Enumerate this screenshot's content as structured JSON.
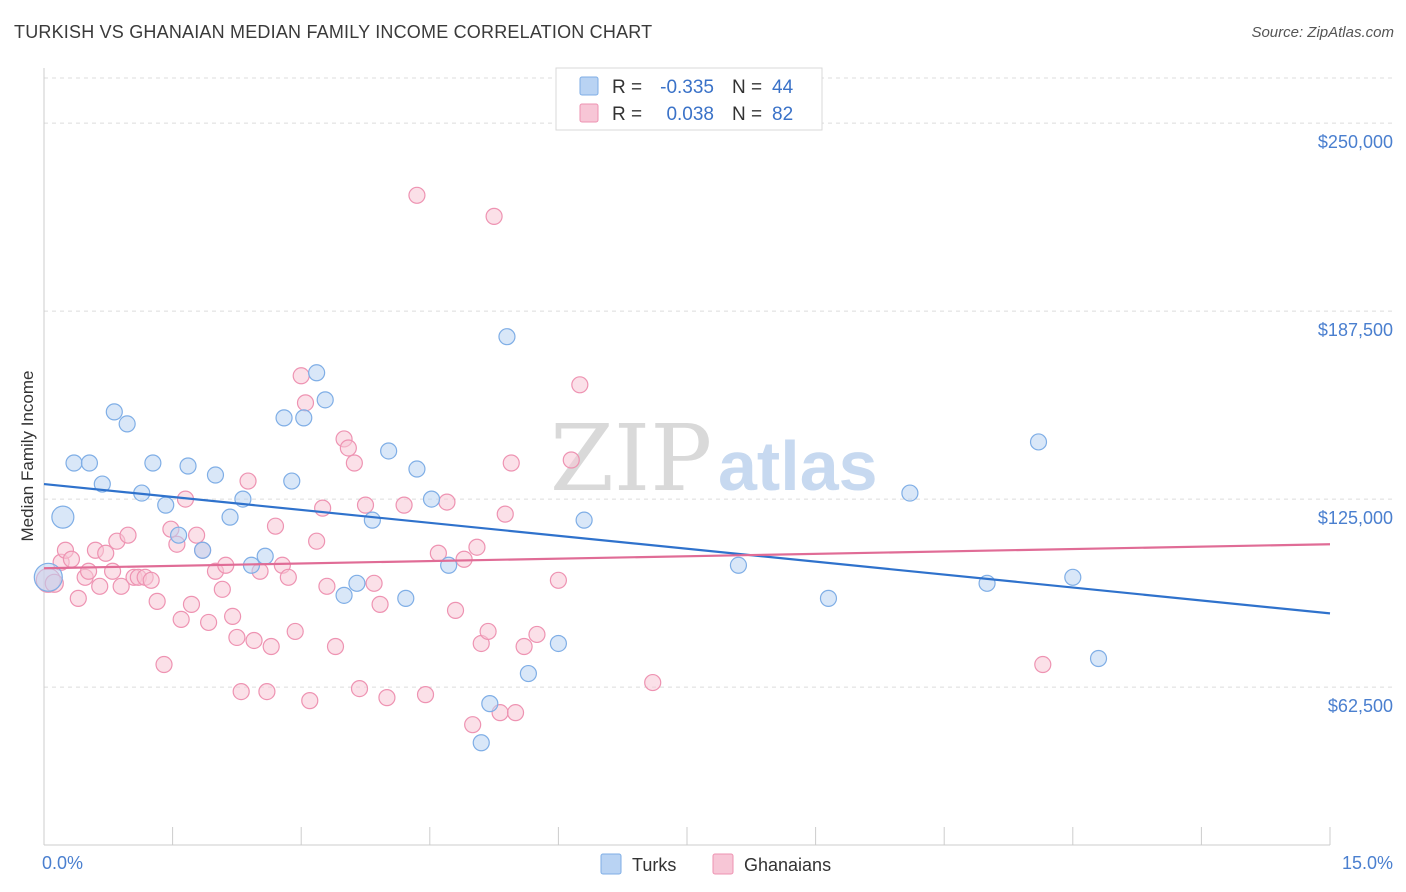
{
  "header": {
    "title": "TURKISH VS GHANAIAN MEDIAN FAMILY INCOME CORRELATION CHART",
    "source": "Source: ZipAtlas.com"
  },
  "watermark": {
    "zip": "ZIP",
    "atlas": "atlas"
  },
  "colors": {
    "turks_fill": "#b9d3f3",
    "turks_stroke": "#7faee6",
    "turks_line": "#2f72cc",
    "ghana_fill": "#f7c6d6",
    "ghana_stroke": "#ee93b2",
    "ghana_line": "#e06c96",
    "grid": "#dcdcdc",
    "tick": "#4a7fcf"
  },
  "legend": {
    "rows": [
      {
        "r_label": "R =",
        "r_value": "-0.335",
        "n_label": "N =",
        "n_value": "44"
      },
      {
        "r_label": "R =",
        "r_value": "0.038",
        "n_label": "N =",
        "n_value": "82"
      }
    ]
  },
  "chart_data": {
    "type": "scatter",
    "title": "TURKISH VS GHANAIAN MEDIAN FAMILY INCOME CORRELATION CHART",
    "ylabel": "Median Family Income",
    "xlim": [
      0,
      15
    ],
    "ylim": [
      10000,
      265000
    ],
    "x_tick_labels": [
      "0.0%",
      "15.0%"
    ],
    "y_ticks": [
      62500,
      125000,
      187500,
      250000
    ],
    "y_tick_labels": [
      "$62,500",
      "$125,000",
      "$187,500",
      "$250,000"
    ],
    "grid": "horizontal dashed",
    "legend_position": "top-center and bottom",
    "series": [
      {
        "name": "Turks",
        "trend": [
          [
            0.0,
            130000
          ],
          [
            15.0,
            87000
          ]
        ],
        "points": [
          [
            0.05,
            99000,
            14
          ],
          [
            0.22,
            119000,
            11
          ],
          [
            0.35,
            137000,
            8
          ],
          [
            0.53,
            137000,
            8
          ],
          [
            0.68,
            130000,
            8
          ],
          [
            0.82,
            154000,
            8
          ],
          [
            0.97,
            150000,
            8
          ],
          [
            1.14,
            127000,
            8
          ],
          [
            1.27,
            137000,
            8
          ],
          [
            1.42,
            123000,
            8
          ],
          [
            1.57,
            113000,
            8
          ],
          [
            1.68,
            136000,
            8
          ],
          [
            1.85,
            108000,
            8
          ],
          [
            2.0,
            133000,
            8
          ],
          [
            2.17,
            119000,
            8
          ],
          [
            2.32,
            125000,
            8
          ],
          [
            2.42,
            103000,
            8
          ],
          [
            2.58,
            106000,
            8
          ],
          [
            2.8,
            152000,
            8
          ],
          [
            2.89,
            131000,
            8
          ],
          [
            3.03,
            152000,
            8
          ],
          [
            3.18,
            167000,
            8
          ],
          [
            3.28,
            158000,
            8
          ],
          [
            3.5,
            93000,
            8
          ],
          [
            3.65,
            97000,
            8
          ],
          [
            3.83,
            118000,
            8
          ],
          [
            4.02,
            141000,
            8
          ],
          [
            4.22,
            92000,
            8
          ],
          [
            4.35,
            135000,
            8
          ],
          [
            4.52,
            125000,
            8
          ],
          [
            4.72,
            103000,
            8
          ],
          [
            5.1,
            44000,
            8
          ],
          [
            5.2,
            57000,
            8
          ],
          [
            5.4,
            179000,
            8
          ],
          [
            5.65,
            67000,
            8
          ],
          [
            6.0,
            77000,
            8
          ],
          [
            6.3,
            118000,
            8
          ],
          [
            8.1,
            103000,
            8
          ],
          [
            9.15,
            92000,
            8
          ],
          [
            10.1,
            127000,
            8
          ],
          [
            11.0,
            97000,
            8
          ],
          [
            11.6,
            144000,
            8
          ],
          [
            12.0,
            99000,
            8
          ],
          [
            12.3,
            72000,
            8
          ]
        ]
      },
      {
        "name": "Ghanaians",
        "trend": [
          [
            0.0,
            102000
          ],
          [
            15.0,
            110000
          ]
        ],
        "points": [
          [
            0.05,
            98000,
            12
          ],
          [
            0.12,
            97000,
            9
          ],
          [
            0.2,
            104000,
            8
          ],
          [
            0.25,
            108000,
            8
          ],
          [
            0.32,
            105000,
            8
          ],
          [
            0.4,
            92000,
            8
          ],
          [
            0.48,
            99000,
            8
          ],
          [
            0.52,
            101000,
            8
          ],
          [
            0.6,
            108000,
            8
          ],
          [
            0.65,
            96000,
            8
          ],
          [
            0.72,
            107000,
            8
          ],
          [
            0.8,
            101000,
            8
          ],
          [
            0.85,
            111000,
            8
          ],
          [
            0.9,
            96000,
            8
          ],
          [
            0.98,
            113000,
            8
          ],
          [
            1.05,
            99000,
            8
          ],
          [
            1.1,
            99000,
            8
          ],
          [
            1.18,
            99000,
            8
          ],
          [
            1.25,
            98000,
            8
          ],
          [
            1.32,
            91000,
            8
          ],
          [
            1.4,
            70000,
            8
          ],
          [
            1.48,
            115000,
            8
          ],
          [
            1.55,
            110000,
            8
          ],
          [
            1.6,
            85000,
            8
          ],
          [
            1.65,
            125000,
            8
          ],
          [
            1.72,
            90000,
            8
          ],
          [
            1.78,
            113000,
            8
          ],
          [
            1.85,
            108000,
            8
          ],
          [
            1.92,
            84000,
            8
          ],
          [
            2.0,
            101000,
            8
          ],
          [
            2.08,
            95000,
            8
          ],
          [
            2.12,
            103000,
            8
          ],
          [
            2.2,
            86000,
            8
          ],
          [
            2.25,
            79000,
            8
          ],
          [
            2.3,
            61000,
            8
          ],
          [
            2.38,
            131000,
            8
          ],
          [
            2.45,
            78000,
            8
          ],
          [
            2.52,
            101000,
            8
          ],
          [
            2.6,
            61000,
            8
          ],
          [
            2.65,
            76000,
            8
          ],
          [
            2.7,
            116000,
            8
          ],
          [
            2.78,
            103000,
            8
          ],
          [
            2.85,
            99000,
            8
          ],
          [
            2.93,
            81000,
            8
          ],
          [
            3.0,
            166000,
            8
          ],
          [
            3.05,
            157000,
            8
          ],
          [
            3.1,
            58000,
            8
          ],
          [
            3.18,
            111000,
            8
          ],
          [
            3.25,
            122000,
            8
          ],
          [
            3.3,
            96000,
            8
          ],
          [
            3.4,
            76000,
            8
          ],
          [
            3.5,
            145000,
            8
          ],
          [
            3.55,
            142000,
            8
          ],
          [
            3.62,
            137000,
            8
          ],
          [
            3.68,
            62000,
            8
          ],
          [
            3.75,
            123000,
            8
          ],
          [
            3.85,
            97000,
            8
          ],
          [
            3.92,
            90000,
            8
          ],
          [
            4.0,
            59000,
            8
          ],
          [
            4.2,
            123000,
            8
          ],
          [
            4.35,
            226000,
            8
          ],
          [
            4.45,
            60000,
            8
          ],
          [
            4.6,
            107000,
            8
          ],
          [
            4.7,
            124000,
            8
          ],
          [
            4.8,
            88000,
            8
          ],
          [
            4.9,
            105000,
            8
          ],
          [
            5.0,
            50000,
            8
          ],
          [
            5.05,
            109000,
            8
          ],
          [
            5.1,
            77000,
            8
          ],
          [
            5.18,
            81000,
            8
          ],
          [
            5.25,
            219000,
            8
          ],
          [
            5.32,
            54000,
            8
          ],
          [
            5.38,
            120000,
            8
          ],
          [
            5.45,
            137000,
            8
          ],
          [
            5.5,
            54000,
            8
          ],
          [
            5.6,
            76000,
            8
          ],
          [
            5.75,
            80000,
            8
          ],
          [
            6.0,
            98000,
            8
          ],
          [
            6.15,
            138000,
            8
          ],
          [
            6.25,
            163000,
            8
          ],
          [
            7.1,
            64000,
            8
          ],
          [
            11.65,
            70000,
            8
          ]
        ]
      }
    ]
  },
  "bottom_legend": {
    "items": [
      "Turks",
      "Ghanaians"
    ]
  }
}
